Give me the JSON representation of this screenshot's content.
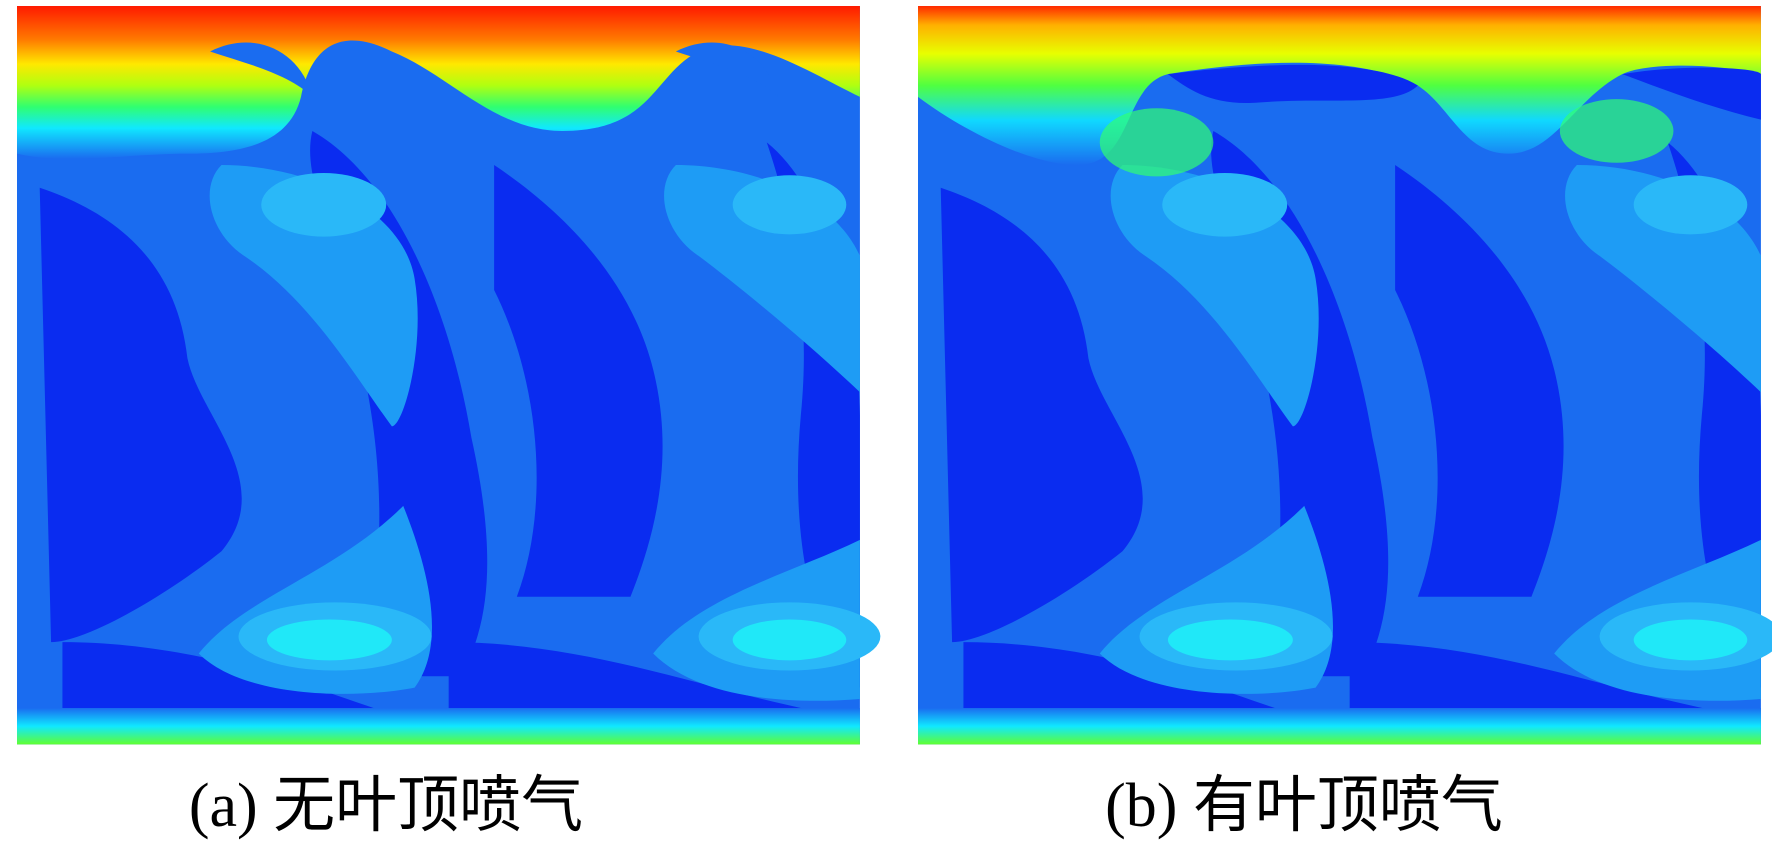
{
  "panels": [
    {
      "caption": "(a) 无叶顶喷气"
    },
    {
      "caption": "(b) 有叶顶喷气"
    }
  ]
}
